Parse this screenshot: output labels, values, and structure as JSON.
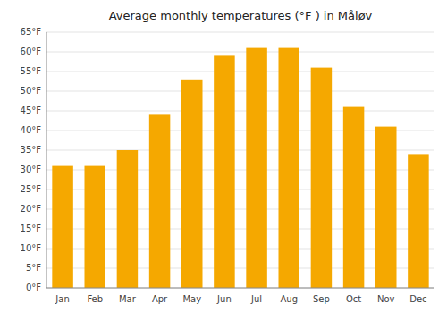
{
  "chart_data": {
    "type": "bar",
    "title": "Average monthly temperatures (°F ) in Måløv",
    "categories": [
      "Jan",
      "Feb",
      "Mar",
      "Apr",
      "May",
      "Jun",
      "Jul",
      "Aug",
      "Sep",
      "Oct",
      "Nov",
      "Dec"
    ],
    "values": [
      31,
      31,
      35,
      44,
      53,
      59,
      61,
      61,
      56,
      46,
      41,
      34
    ],
    "color": "#F5A800",
    "ylim": [
      0,
      65
    ],
    "yticks": [
      {
        "value": 0,
        "label": "0°F"
      },
      {
        "value": 5,
        "label": "5°F"
      },
      {
        "value": 10,
        "label": "10°F"
      },
      {
        "value": 15,
        "label": "15°F"
      },
      {
        "value": 20,
        "label": "20°F"
      },
      {
        "value": 25,
        "label": "25°F"
      },
      {
        "value": 30,
        "label": "30°F"
      },
      {
        "value": 35,
        "label": "35°F"
      },
      {
        "value": 40,
        "label": "40°F"
      },
      {
        "value": 45,
        "label": "45°F"
      },
      {
        "value": 50,
        "label": "50°F"
      },
      {
        "value": 55,
        "label": "55°F"
      },
      {
        "value": 60,
        "label": "60°F"
      },
      {
        "value": 65,
        "label": "65°F"
      }
    ],
    "grid": true
  }
}
